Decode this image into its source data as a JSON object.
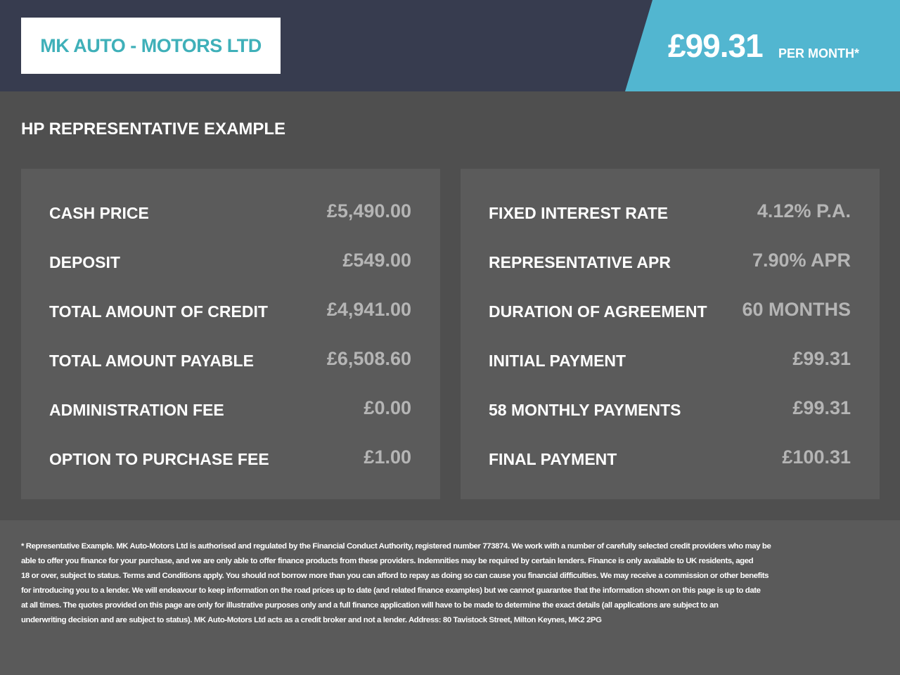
{
  "header": {
    "logo": "MK AUTO - MOTORS LTD",
    "price": "£99.31",
    "price_suffix": "PER MONTH*"
  },
  "section_title": "HP REPRESENTATIVE EXAMPLE",
  "left_panel": [
    {
      "label": "CASH PRICE",
      "value": "£5,490.00"
    },
    {
      "label": "DEPOSIT",
      "value": "£549.00"
    },
    {
      "label": "TOTAL AMOUNT OF CREDIT",
      "value": "£4,941.00"
    },
    {
      "label": "TOTAL AMOUNT PAYABLE",
      "value": "£6,508.60"
    },
    {
      "label": "ADMINISTRATION FEE",
      "value": "£0.00"
    },
    {
      "label": "OPTION TO PURCHASE FEE",
      "value": "£1.00"
    }
  ],
  "right_panel": [
    {
      "label": "FIXED INTEREST RATE",
      "value": "4.12% P.A."
    },
    {
      "label": "REPRESENTATIVE APR",
      "value": "7.90% APR"
    },
    {
      "label": "DURATION OF AGREEMENT",
      "value": "60 MONTHS"
    },
    {
      "label": "INITIAL PAYMENT",
      "value": "£99.31"
    },
    {
      "label": "58 MONTHLY PAYMENTS",
      "value": "£99.31"
    },
    {
      "label": "FINAL PAYMENT",
      "value": "£100.31"
    }
  ],
  "disclaimer": [
    "* Representative Example. MK Auto-Motors Ltd is authorised and regulated by the Financial Conduct Authority, registered number 773874. We work with a number of carefully selected credit providers who may be",
    "able to offer you finance for your purchase, and we are only able to offer finance products from these providers. Indemnities may be required by certain lenders. Finance is only available to UK residents, aged",
    "18 or over, subject to status. Terms and Conditions apply. You should not borrow more than you can afford to repay as doing so can cause you financial difficulties. We may receive a commission or other benefits",
    "for introducing you to a lender. We will endeavour to keep information on the road prices up to date (and related finance examples) but we cannot guarantee that the information shown on this page is up to date",
    "at all times. The quotes provided on this page are only for illustrative purposes only and a full finance application will have to be made to determine the exact details (all applications are subject to an",
    "underwriting decision and are subject to status). MK Auto-Motors Ltd acts as a credit broker and not a lender. Address: 80 Tavistock Street, Milton Keynes, MK2 2PG"
  ]
}
